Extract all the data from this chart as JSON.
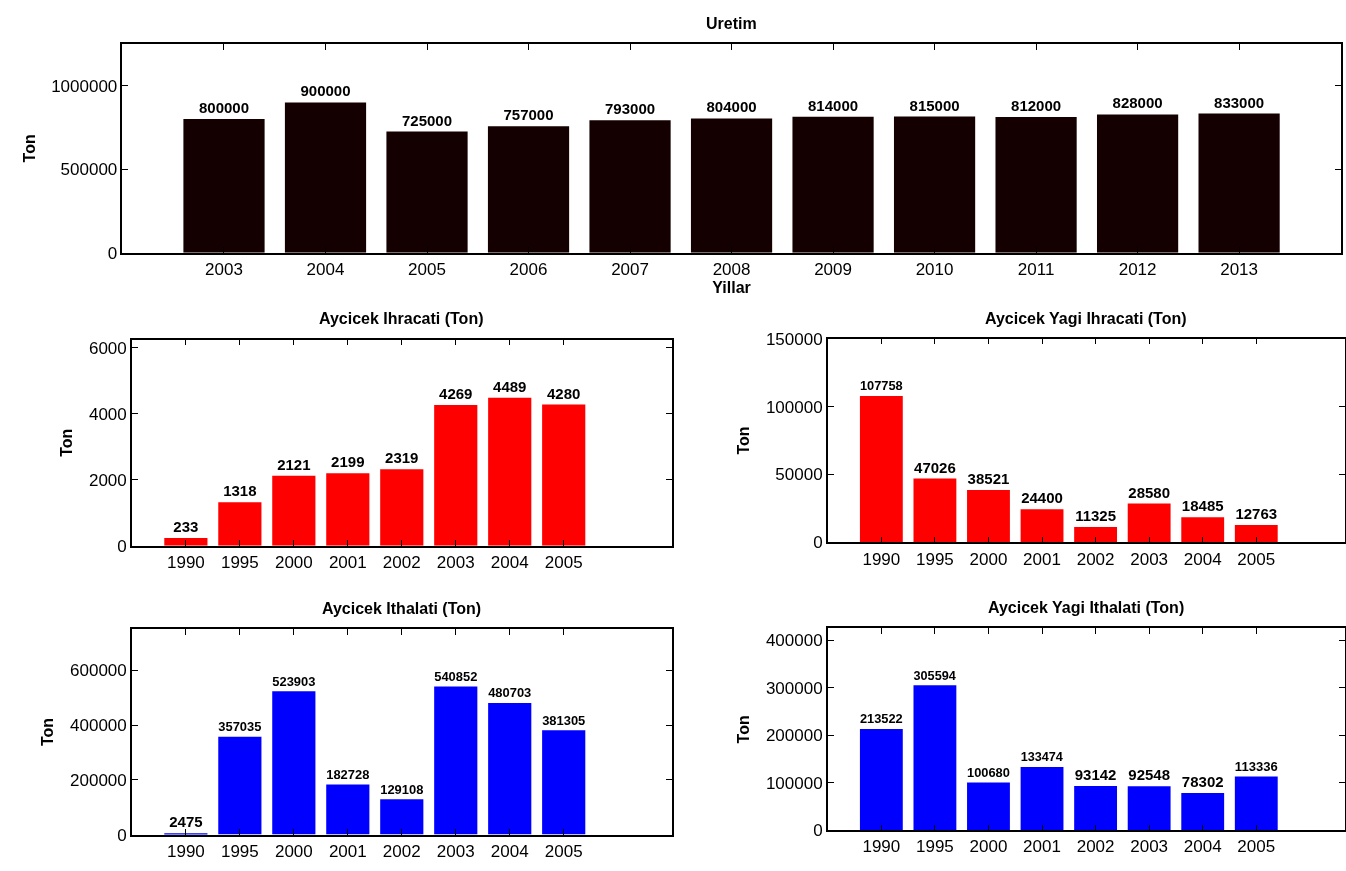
{
  "chart_data": [
    {
      "type": "bar",
      "title": "Uretim",
      "xlabel": "Yillar",
      "ylabel": "Ton",
      "categories": [
        "2003",
        "2004",
        "2005",
        "2006",
        "2007",
        "2008",
        "2009",
        "2010",
        "2011",
        "2012",
        "2013"
      ],
      "values": [
        800000,
        900000,
        725000,
        757000,
        793000,
        804000,
        814000,
        815000,
        812000,
        828000,
        833000
      ],
      "color": "#140000",
      "ylim": [
        0,
        1250000
      ],
      "yticks": [
        0,
        500000,
        1000000
      ],
      "data_labels": true
    },
    {
      "type": "bar",
      "title": "Aycicek Ihracati (Ton)",
      "ylabel": "Ton",
      "categories": [
        "1990",
        "1995",
        "2000",
        "2001",
        "2002",
        "2003",
        "2004",
        "2005"
      ],
      "values": [
        233,
        1318,
        2121,
        2199,
        2319,
        4269,
        4489,
        4280
      ],
      "color": "#ff0000",
      "ylim": [
        0,
        6250
      ],
      "yticks": [
        0,
        2000,
        4000,
        6000
      ],
      "data_labels": true
    },
    {
      "type": "bar",
      "title": "Aycicek Yagi Ihracati (Ton)",
      "ylabel": "Ton",
      "categories": [
        "1990",
        "1995",
        "2000",
        "2001",
        "2002",
        "2003",
        "2004",
        "2005"
      ],
      "values": [
        107758,
        47026,
        38521,
        24400,
        11325,
        28580,
        18485,
        12763
      ],
      "color": "#ff0000",
      "ylim": [
        0,
        150000
      ],
      "yticks": [
        0,
        50000,
        100000,
        150000
      ],
      "data_labels": true
    },
    {
      "type": "bar",
      "title": "Aycicek Ithalati (Ton)",
      "ylabel": "Ton",
      "categories": [
        "1990",
        "1995",
        "2000",
        "2001",
        "2002",
        "2003",
        "2004",
        "2005"
      ],
      "values": [
        2475,
        357035,
        523903,
        182728,
        129108,
        540852,
        480703,
        381305
      ],
      "color": "#0000ff",
      "ylim": [
        0,
        750000
      ],
      "yticks": [
        0,
        200000,
        400000,
        600000
      ],
      "data_labels": true
    },
    {
      "type": "bar",
      "title": "Aycicek Yagi Ithalati (Ton)",
      "ylabel": "Ton",
      "categories": [
        "1990",
        "1995",
        "2000",
        "2001",
        "2002",
        "2003",
        "2004",
        "2005"
      ],
      "values": [
        213522,
        305594,
        100680,
        133474,
        93142,
        92548,
        78302,
        113336
      ],
      "color": "#0000ff",
      "ylim": [
        0,
        425000
      ],
      "yticks": [
        0,
        100000,
        200000,
        300000,
        400000
      ],
      "data_labels": true
    }
  ]
}
